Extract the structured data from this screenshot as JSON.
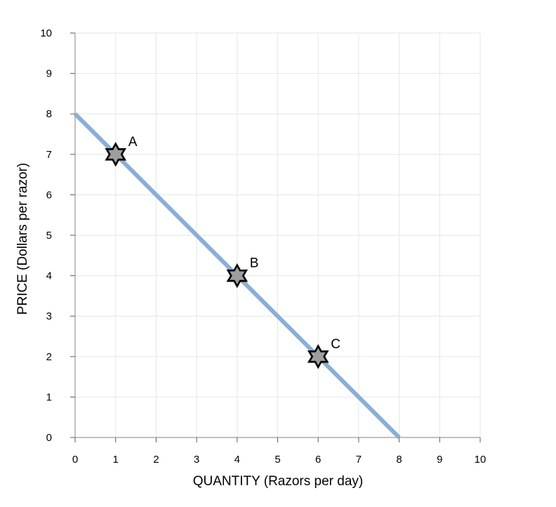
{
  "chart_data": {
    "type": "line",
    "title": "",
    "xlabel": "QUANTITY (Razors per day)",
    "ylabel": "PRICE (Dollars per razor)",
    "xlim": [
      0,
      10
    ],
    "ylim": [
      0,
      10
    ],
    "xticks": [
      0,
      1,
      2,
      3,
      4,
      5,
      6,
      7,
      8,
      9,
      10
    ],
    "yticks": [
      0,
      1,
      2,
      3,
      4,
      5,
      6,
      7,
      8,
      9,
      10
    ],
    "grid": true,
    "series": [
      {
        "color": "#8aafd3",
        "points": [
          {
            "x": 0,
            "y": 8
          },
          {
            "x": 8,
            "y": 0
          }
        ]
      }
    ],
    "markers": [
      {
        "label": "A",
        "x": 1,
        "y": 7
      },
      {
        "label": "B",
        "x": 4,
        "y": 4
      },
      {
        "label": "C",
        "x": 6,
        "y": 2
      }
    ],
    "marker_fill": "#9e9e9e",
    "marker_stroke": "#000000"
  }
}
